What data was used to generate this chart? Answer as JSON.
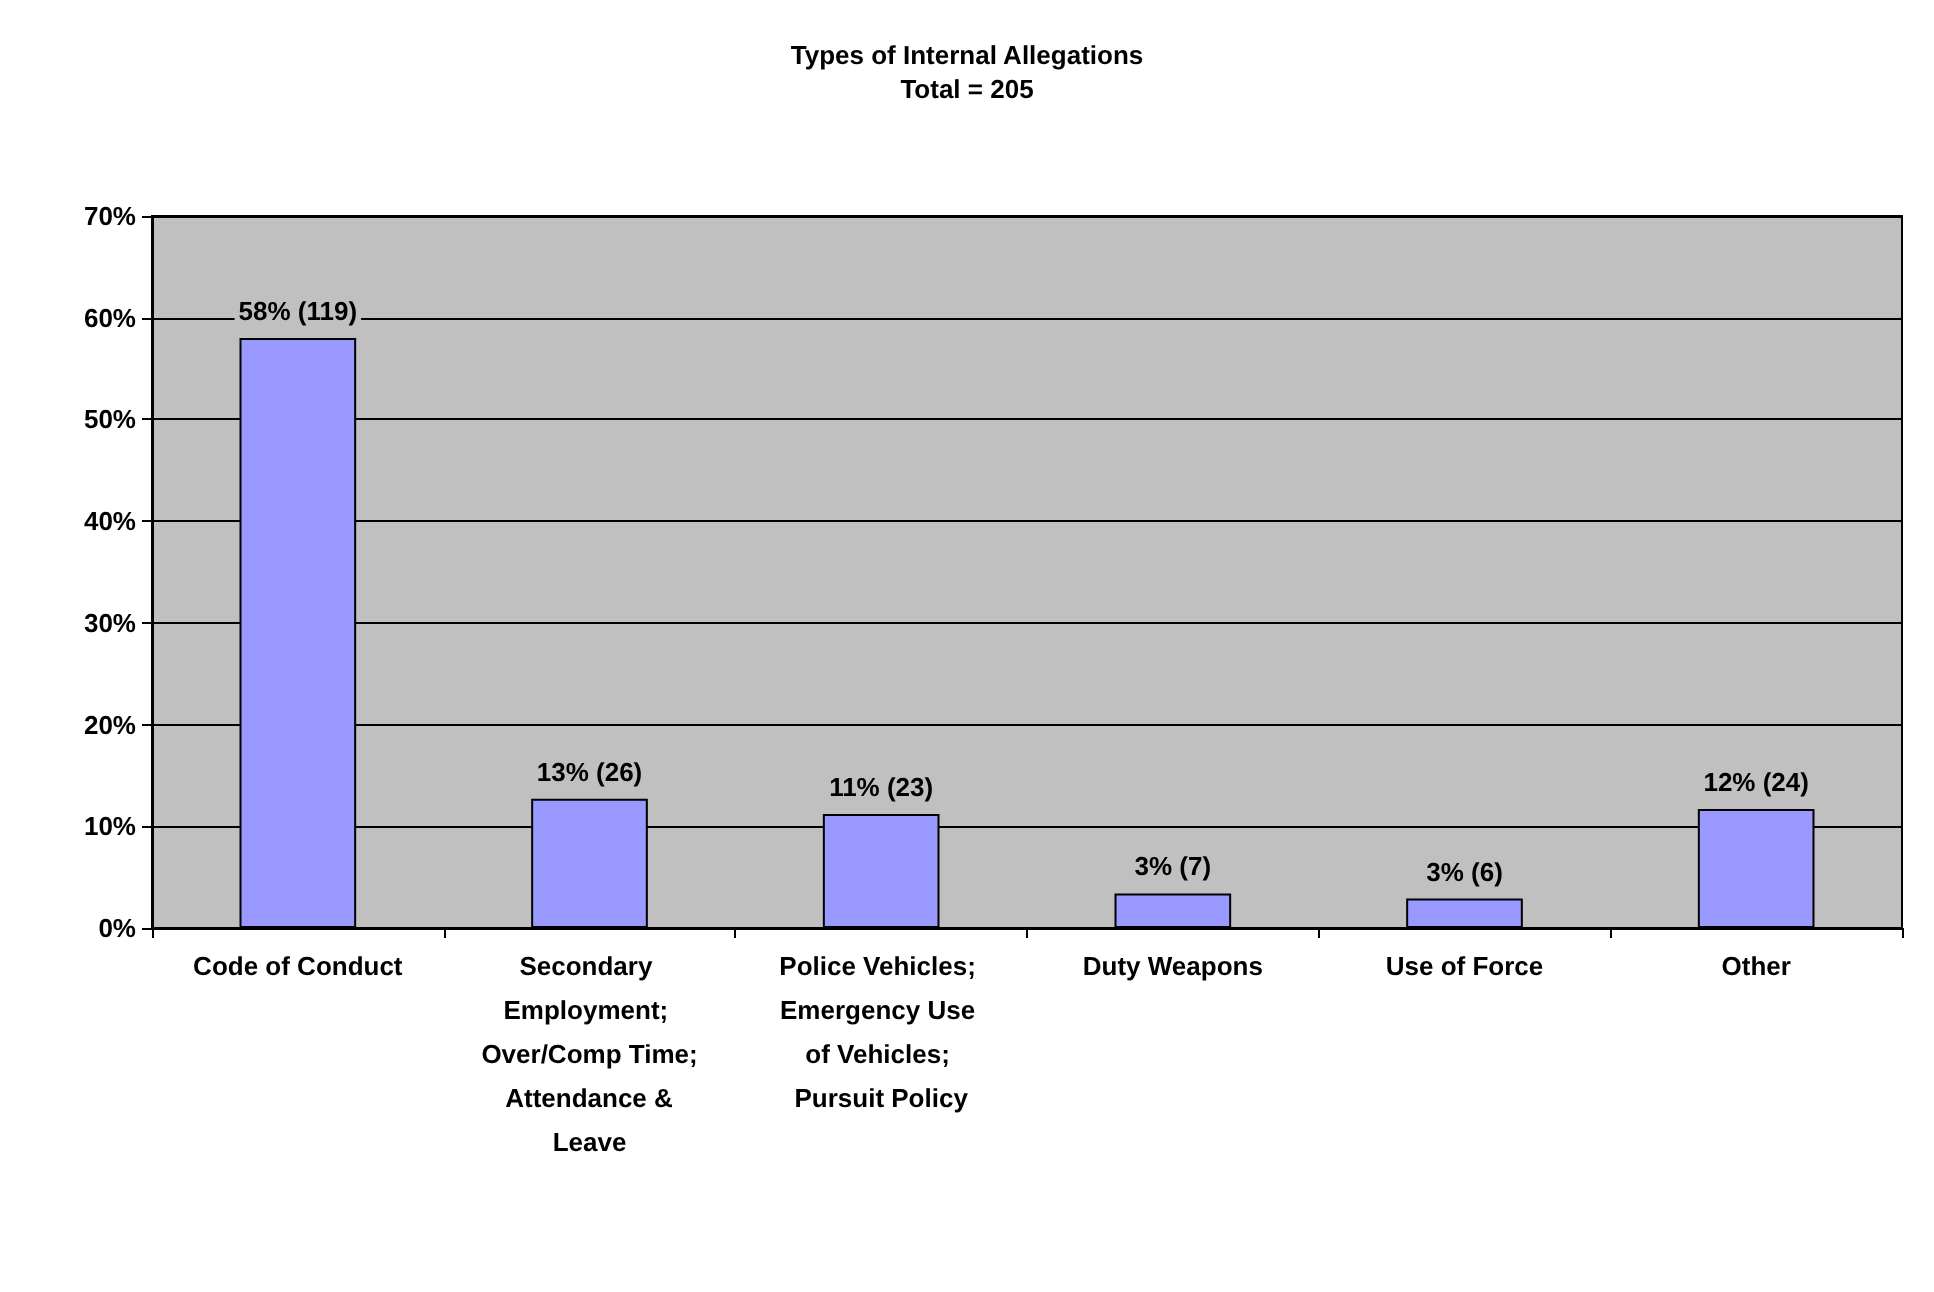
{
  "chart_data": {
    "type": "bar",
    "title": "Types of Internal Allegations",
    "subtitle": "Total = 205",
    "categories": [
      "Code of Conduct",
      "Secondary Employment; Over/Comp Time; Attendance & Leave",
      "Police Vehicles; Emergency Use of Vehicles; Pursuit Policy",
      "Duty Weapons",
      "Use of Force",
      "Other"
    ],
    "values": [
      58.0,
      12.7,
      11.2,
      3.4,
      2.9,
      11.7
    ],
    "value_labels": [
      "58% (119)",
      "13% (26)",
      "11% (23)",
      "3% (7)",
      "3% (6)",
      "12% (24)"
    ],
    "color": "#9999ff",
    "ylim": [
      0,
      70
    ],
    "yticks": [
      {
        "value": 0,
        "label": "0%"
      },
      {
        "value": 10,
        "label": "10%"
      },
      {
        "value": 20,
        "label": "20%"
      },
      {
        "value": 30,
        "label": "30%"
      },
      {
        "value": 40,
        "label": "40%"
      },
      {
        "value": 50,
        "label": "50%"
      },
      {
        "value": 60,
        "label": "60%"
      },
      {
        "value": 70,
        "label": "70%"
      }
    ],
    "grid": "y"
  }
}
